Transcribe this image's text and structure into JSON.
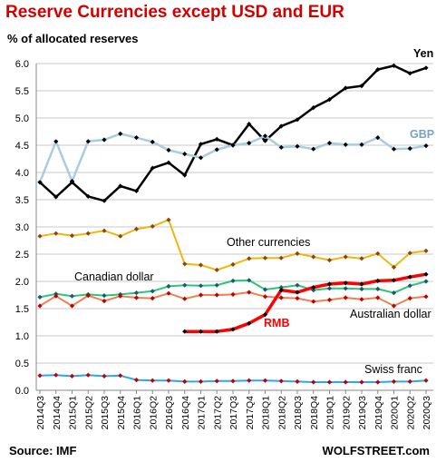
{
  "header": {
    "title": "Reserve Currencies except USD and EUR",
    "subtitle": "% of allocated reserves"
  },
  "footer": {
    "source": "Source: IMF",
    "brand": "WOLFSTREET.com"
  },
  "chart_data": {
    "type": "line",
    "ylim": [
      0,
      6.0
    ],
    "yticks": [
      "0.0",
      "0.5",
      "1.0",
      "1.5",
      "2.0",
      "2.5",
      "3.0",
      "3.5",
      "4.0",
      "4.5",
      "5.0",
      "5.5",
      "6.0"
    ],
    "grid": true,
    "x": [
      "2014Q3",
      "2014Q4",
      "2015Q1",
      "2015Q2",
      "2015Q3",
      "2015Q4",
      "2016Q1",
      "2016Q2",
      "2016Q3",
      "2016Q4",
      "2017Q1",
      "2017Q2",
      "2017Q3",
      "2017Q4",
      "2018Q1",
      "2018Q2",
      "2018Q3",
      "2018Q4",
      "2019Q1",
      "2019Q2",
      "2019Q3",
      "2019Q4",
      "2020Q1",
      "2020Q2",
      "2020Q3"
    ],
    "series": [
      {
        "name": "Yen",
        "color": "#000000",
        "marker": "#000000",
        "width": 2.5,
        "label_color": "#000000",
        "label_bold": true,
        "values": [
          3.82,
          3.55,
          3.82,
          3.56,
          3.48,
          3.75,
          3.66,
          4.08,
          4.18,
          3.95,
          4.52,
          4.61,
          4.5,
          4.89,
          4.58,
          4.85,
          4.97,
          5.19,
          5.34,
          5.55,
          5.59,
          5.89,
          5.96,
          5.82,
          5.92
        ]
      },
      {
        "name": "GBP",
        "color": "#a9cde0",
        "marker": "#000000",
        "width": 2.5,
        "label_color": "#7aa3c4",
        "label_bold": true,
        "values": [
          3.82,
          4.57,
          3.84,
          4.57,
          4.6,
          4.71,
          4.64,
          4.56,
          4.41,
          4.34,
          4.27,
          4.42,
          4.5,
          4.54,
          4.67,
          4.46,
          4.48,
          4.43,
          4.54,
          4.51,
          4.51,
          4.64,
          4.43,
          4.44,
          4.49
        ]
      },
      {
        "name": "Other currencies",
        "color": "#f2b60a",
        "marker": "#8b4513",
        "width": 2,
        "label_color": "#000000",
        "label_bold": false,
        "values": [
          2.83,
          2.88,
          2.84,
          2.88,
          2.93,
          2.83,
          2.96,
          3.01,
          3.13,
          2.32,
          2.3,
          2.21,
          2.31,
          2.42,
          2.43,
          2.43,
          2.51,
          2.45,
          2.39,
          2.45,
          2.42,
          2.51,
          2.26,
          2.52,
          2.56
        ]
      },
      {
        "name": "Canadian dollar",
        "color": "#2ec47a",
        "marker": "#1a5a6e",
        "width": 2,
        "label_color": "#000000",
        "label_bold": false,
        "values": [
          1.71,
          1.77,
          1.73,
          1.76,
          1.74,
          1.76,
          1.79,
          1.82,
          1.91,
          1.93,
          1.92,
          1.93,
          2.01,
          2.02,
          1.85,
          1.89,
          1.93,
          1.84,
          1.87,
          1.87,
          1.86,
          1.86,
          1.79,
          1.92,
          2.0
        ]
      },
      {
        "name": "Australian dollar",
        "color": "#f07f52",
        "marker": "#c00000",
        "width": 2,
        "label_color": "#000000",
        "label_bold": false,
        "values": [
          1.55,
          1.73,
          1.55,
          1.74,
          1.64,
          1.73,
          1.7,
          1.69,
          1.78,
          1.68,
          1.75,
          1.75,
          1.76,
          1.8,
          1.72,
          1.7,
          1.69,
          1.63,
          1.66,
          1.7,
          1.67,
          1.7,
          1.55,
          1.69,
          1.72
        ]
      },
      {
        "name": "RMB",
        "color": "#ff0000",
        "marker": "#000000",
        "width": 3.5,
        "label_color": "#ff0000",
        "label_bold": true,
        "values": [
          null,
          null,
          null,
          null,
          null,
          null,
          null,
          null,
          null,
          1.08,
          1.08,
          1.08,
          1.12,
          1.23,
          1.39,
          1.84,
          1.8,
          1.89,
          1.95,
          1.97,
          1.95,
          2.01,
          2.02,
          2.08,
          2.13
        ]
      },
      {
        "name": "Swiss franc",
        "color": "#2fa6e8",
        "marker": "#c00000",
        "width": 2,
        "label_color": "#000000",
        "label_bold": false,
        "values": [
          0.27,
          0.28,
          0.26,
          0.28,
          0.26,
          0.27,
          0.19,
          0.18,
          0.18,
          0.16,
          0.16,
          0.17,
          0.17,
          0.18,
          0.18,
          0.17,
          0.16,
          0.15,
          0.15,
          0.15,
          0.15,
          0.15,
          0.16,
          0.16,
          0.18
        ]
      }
    ]
  }
}
